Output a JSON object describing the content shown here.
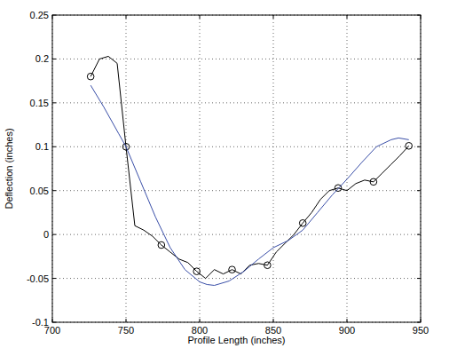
{
  "chart_data": {
    "type": "line",
    "x_label": "Profile Length (inches)",
    "y_label": "Deflection (inches)",
    "xlim": [
      700,
      950
    ],
    "xticks": [
      700,
      750,
      800,
      850,
      900,
      950
    ],
    "ylim": [
      -0.1,
      0.25
    ],
    "yticks": [
      -0.1,
      -0.05,
      0,
      0.05,
      0.1,
      0.15,
      0.2,
      0.25
    ],
    "grid": true,
    "series": [
      {
        "type": "line",
        "color": "#000000",
        "line_style": "solid",
        "x": [
          726,
          732,
          738,
          744,
          750,
          756,
          762,
          768,
          774,
          780,
          786,
          792,
          798,
          804,
          810,
          816,
          822,
          828,
          834,
          840,
          846,
          852,
          858,
          864,
          870,
          876,
          882,
          888,
          894,
          900,
          906,
          912,
          918,
          924,
          930,
          936,
          942
        ],
        "values": [
          0.18,
          0.2,
          0.203,
          0.195,
          0.1,
          0.01,
          0.005,
          -0.002,
          -0.012,
          -0.02,
          -0.028,
          -0.032,
          -0.042,
          -0.05,
          -0.04,
          -0.045,
          -0.04,
          -0.045,
          -0.035,
          -0.033,
          -0.035,
          -0.02,
          -0.01,
          0.0,
          0.013,
          0.025,
          0.04,
          0.05,
          0.053,
          0.05,
          0.058,
          0.062,
          0.06,
          0.07,
          0.08,
          0.09,
          0.101
        ]
      },
      {
        "type": "scatter",
        "color": "#000000",
        "marker": "circle",
        "x": [
          726,
          750,
          774,
          798,
          822,
          846,
          870,
          894,
          918,
          942
        ],
        "values": [
          0.18,
          0.1,
          -0.012,
          -0.042,
          -0.04,
          -0.035,
          0.013,
          0.053,
          0.06,
          0.101
        ]
      },
      {
        "type": "line",
        "color": "#3a4fa8",
        "line_style": "solid",
        "x": [
          726,
          735,
          745,
          750,
          760,
          770,
          780,
          790,
          800,
          805,
          810,
          820,
          830,
          840,
          850,
          860,
          870,
          880,
          890,
          900,
          910,
          920,
          930,
          935,
          942
        ],
        "values": [
          0.17,
          0.145,
          0.115,
          0.1,
          0.06,
          0.02,
          -0.015,
          -0.04,
          -0.054,
          -0.057,
          -0.058,
          -0.053,
          -0.042,
          -0.028,
          -0.015,
          -0.007,
          0.005,
          0.025,
          0.045,
          0.063,
          0.082,
          0.1,
          0.108,
          0.11,
          0.108
        ]
      }
    ]
  }
}
